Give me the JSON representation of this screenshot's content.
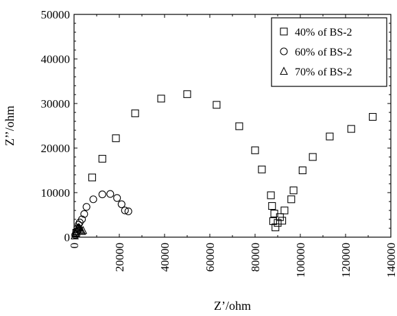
{
  "chart_data": {
    "type": "scatter",
    "xlabel": "Z’/ohm",
    "ylabel": "Z’’/ohm",
    "xlim": [
      0,
      140000
    ],
    "ylim": [
      0,
      50000
    ],
    "xticks": [
      0,
      20000,
      40000,
      60000,
      80000,
      100000,
      120000,
      140000
    ],
    "yticks": [
      0,
      10000,
      20000,
      30000,
      40000,
      50000
    ],
    "xtick_labels": [
      "0",
      "20000",
      "40000",
      "60000",
      "80000",
      "100000",
      "120000",
      "140000"
    ],
    "ytick_labels": [
      "0",
      "10000",
      "20000",
      "30000",
      "40000",
      "50000"
    ],
    "legend_position": "top-right",
    "series": [
      {
        "name": "40% of BS-2",
        "marker": "square",
        "x": [
          1000,
          8000,
          12500,
          18500,
          27000,
          38500,
          50000,
          63000,
          73000,
          80000,
          83000,
          87000,
          87500,
          88000,
          88500,
          89000,
          90000,
          91000,
          92000,
          93000,
          96000,
          97000,
          101000,
          105500,
          113000,
          122500,
          132000
        ],
        "y": [
          1000,
          13400,
          17600,
          22200,
          27800,
          31100,
          32100,
          29700,
          24900,
          19500,
          15200,
          9400,
          7000,
          3600,
          5300,
          2200,
          3200,
          4500,
          3700,
          6000,
          8500,
          10500,
          15000,
          18000,
          22600,
          24300,
          27000
        ]
      },
      {
        "name": "60% of BS-2",
        "marker": "circle",
        "x": [
          500,
          1000,
          1500,
          2000,
          2500,
          3500,
          4500,
          5500,
          8500,
          12500,
          16000,
          19000,
          21000,
          22500,
          24000
        ],
        "y": [
          500,
          1200,
          2000,
          2800,
          3300,
          4000,
          5200,
          6800,
          8500,
          9600,
          9700,
          8800,
          7400,
          6000,
          5800
        ]
      },
      {
        "name": "70% of BS-2",
        "marker": "triangle",
        "x": [
          300,
          600,
          900,
          1200,
          1500,
          1800,
          2100,
          2500,
          3000,
          3500,
          4000
        ],
        "y": [
          300,
          800,
          1300,
          1700,
          2000,
          2100,
          2200,
          2000,
          1700,
          1300,
          1500
        ]
      }
    ]
  }
}
